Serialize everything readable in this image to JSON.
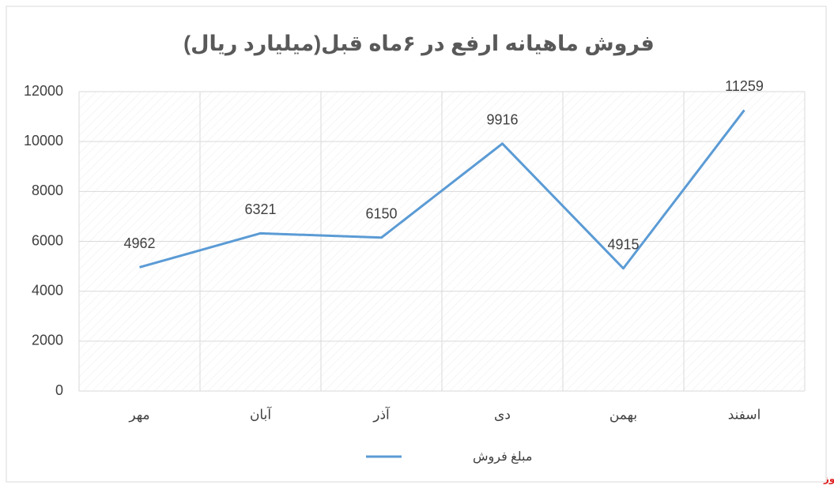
{
  "chart_data": {
    "type": "line",
    "title": "فروش ماهیانه ارفع در ۶ماه قبل(میلیارد ریال)",
    "categories": [
      "مهر",
      "آبان",
      "آذر",
      "دی",
      "بهمن",
      "اسفند"
    ],
    "series": [
      {
        "name": "مبلغ فروش",
        "color": "#5b9bd5",
        "values": [
          4962,
          6321,
          6150,
          9916,
          4915,
          11259
        ]
      }
    ],
    "ylim": [
      0,
      12000
    ],
    "yticks": [
      0,
      2000,
      4000,
      6000,
      8000,
      10000,
      12000
    ],
    "grid": true,
    "legend": "bottom",
    "data_labels": true,
    "watermark": "بورس نیوز"
  }
}
